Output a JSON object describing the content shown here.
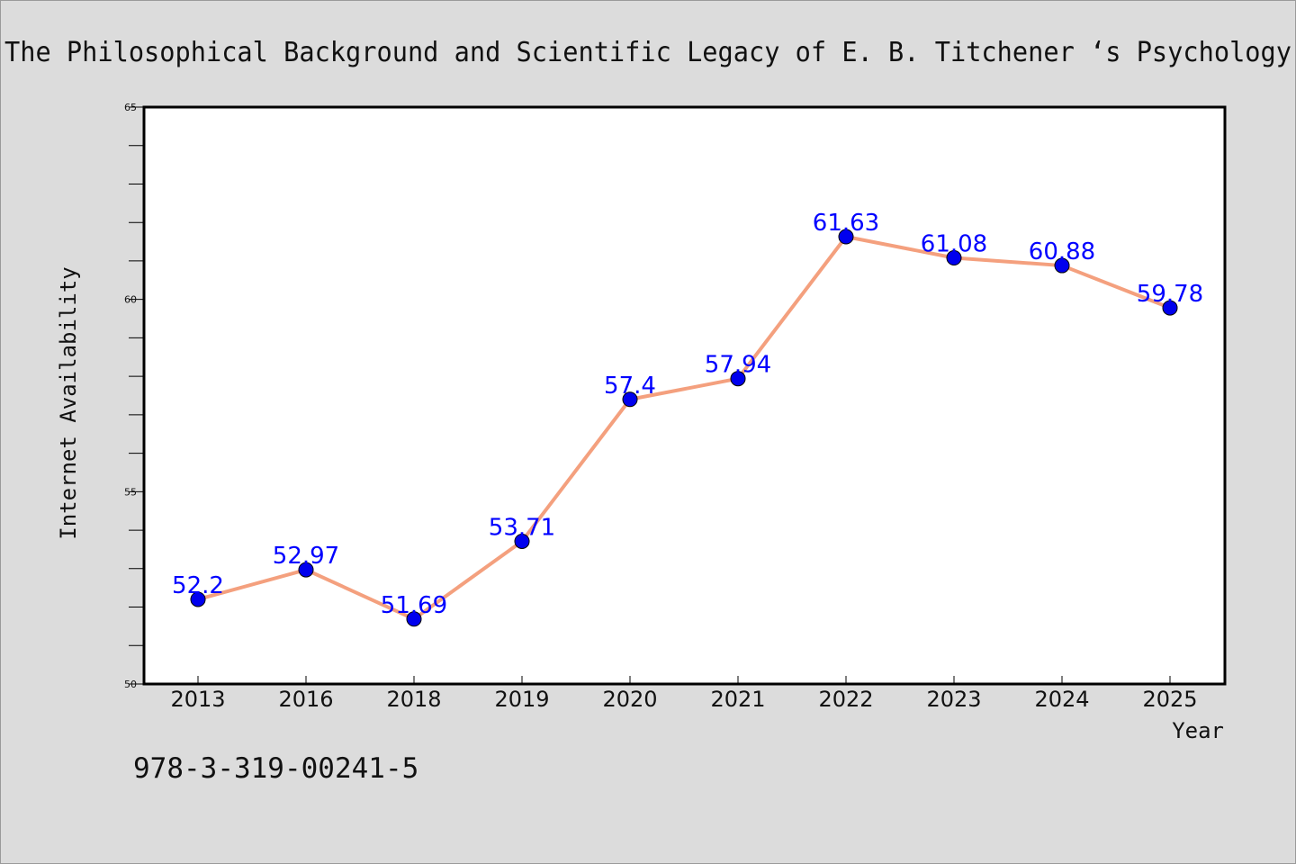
{
  "chart_data": {
    "type": "line",
    "title": "The Philosophical Background and Scientific Legacy of E. B. Titchener ‘s Psychology",
    "xlabel": "Year",
    "ylabel": "Internet Availability",
    "categories": [
      "2013",
      "2016",
      "2018",
      "2019",
      "2020",
      "2021",
      "2022",
      "2023",
      "2024",
      "2025"
    ],
    "values": [
      52.2,
      52.97,
      51.69,
      53.71,
      57.4,
      57.94,
      61.63,
      61.08,
      60.88,
      59.78
    ],
    "data_labels": [
      "52.2",
      "52.97",
      "51.69",
      "53.71",
      "57.4",
      "57.94",
      "61.63",
      "61.08",
      "60.88",
      "59.78"
    ],
    "ylim": [
      50,
      65
    ],
    "yticks": [
      "50",
      "55",
      "60",
      "65"
    ],
    "grid": false,
    "colors": {
      "line": "#f4a07e",
      "marker": "#0000ee",
      "label": "#0000ff"
    }
  },
  "annotation": "978-3-319-00241-5"
}
